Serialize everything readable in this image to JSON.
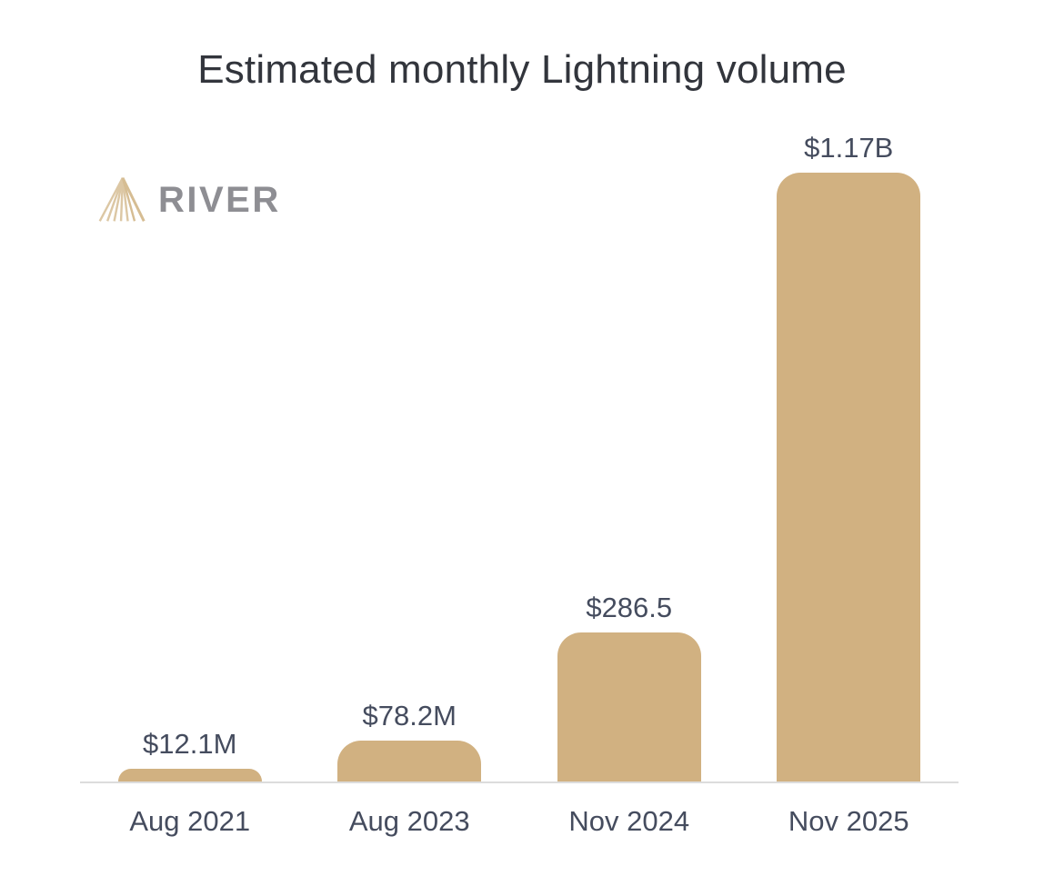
{
  "logo": {
    "brand": "RIVER",
    "icon": "river-peak-icon"
  },
  "colors": {
    "bar": "#d1b181",
    "axis_line": "#dcdcdc",
    "title_text": "#32353c",
    "label_text": "#454c5e",
    "logo_text": "#8e8e93",
    "logo_mark": "#dcc7a4",
    "page_bg": "#ffffff"
  },
  "chart_data": {
    "type": "bar",
    "title": "Estimated monthly Lightning volume",
    "categories": [
      "Aug 2021",
      "Aug 2023",
      "Nov 2024",
      "Nov 2025"
    ],
    "values": [
      12.1,
      78.2,
      286.5,
      1170
    ],
    "units": "USD millions",
    "value_labels": [
      "$12.1M",
      "$78.2M",
      "$286.5",
      "$1.17B"
    ],
    "xlabel": "",
    "ylabel": "",
    "ylim": [
      0,
      1170
    ],
    "grid": false,
    "legend": false,
    "bar_color": "#d1b181"
  }
}
